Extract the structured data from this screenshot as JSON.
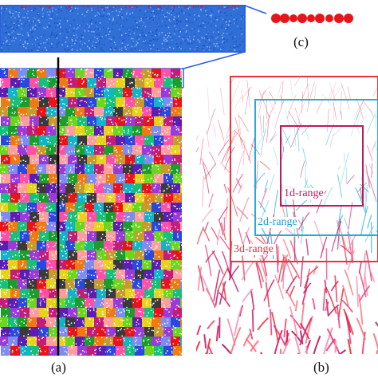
{
  "panels": {
    "a": {
      "label": "(a)",
      "palette": [
        "#e8141c",
        "#1c9d2b",
        "#2a47e0",
        "#e6d21a",
        "#9a3ad8",
        "#11b3c9",
        "#f07a12",
        "#ff4fa6",
        "#6cd61c",
        "#3a3a3a",
        "#c01e78",
        "#7e8cf0",
        "#16c07a",
        "#c69b2e",
        "#5c1eb0",
        "#ff9d9d"
      ]
    },
    "b": {
      "label": "(b)",
      "ranges": [
        "1d-range",
        "2d-range",
        "3d-range"
      ],
      "range_colors": [
        "#c2185b",
        "#29a8d9",
        "#e8323e"
      ]
    },
    "c": {
      "label": "(c)",
      "particle_color": "#e8141c"
    }
  },
  "colors": {
    "slab_blue": "#2f6fd6",
    "frame_blue": "#2d5fe0",
    "divider": "#000000"
  }
}
